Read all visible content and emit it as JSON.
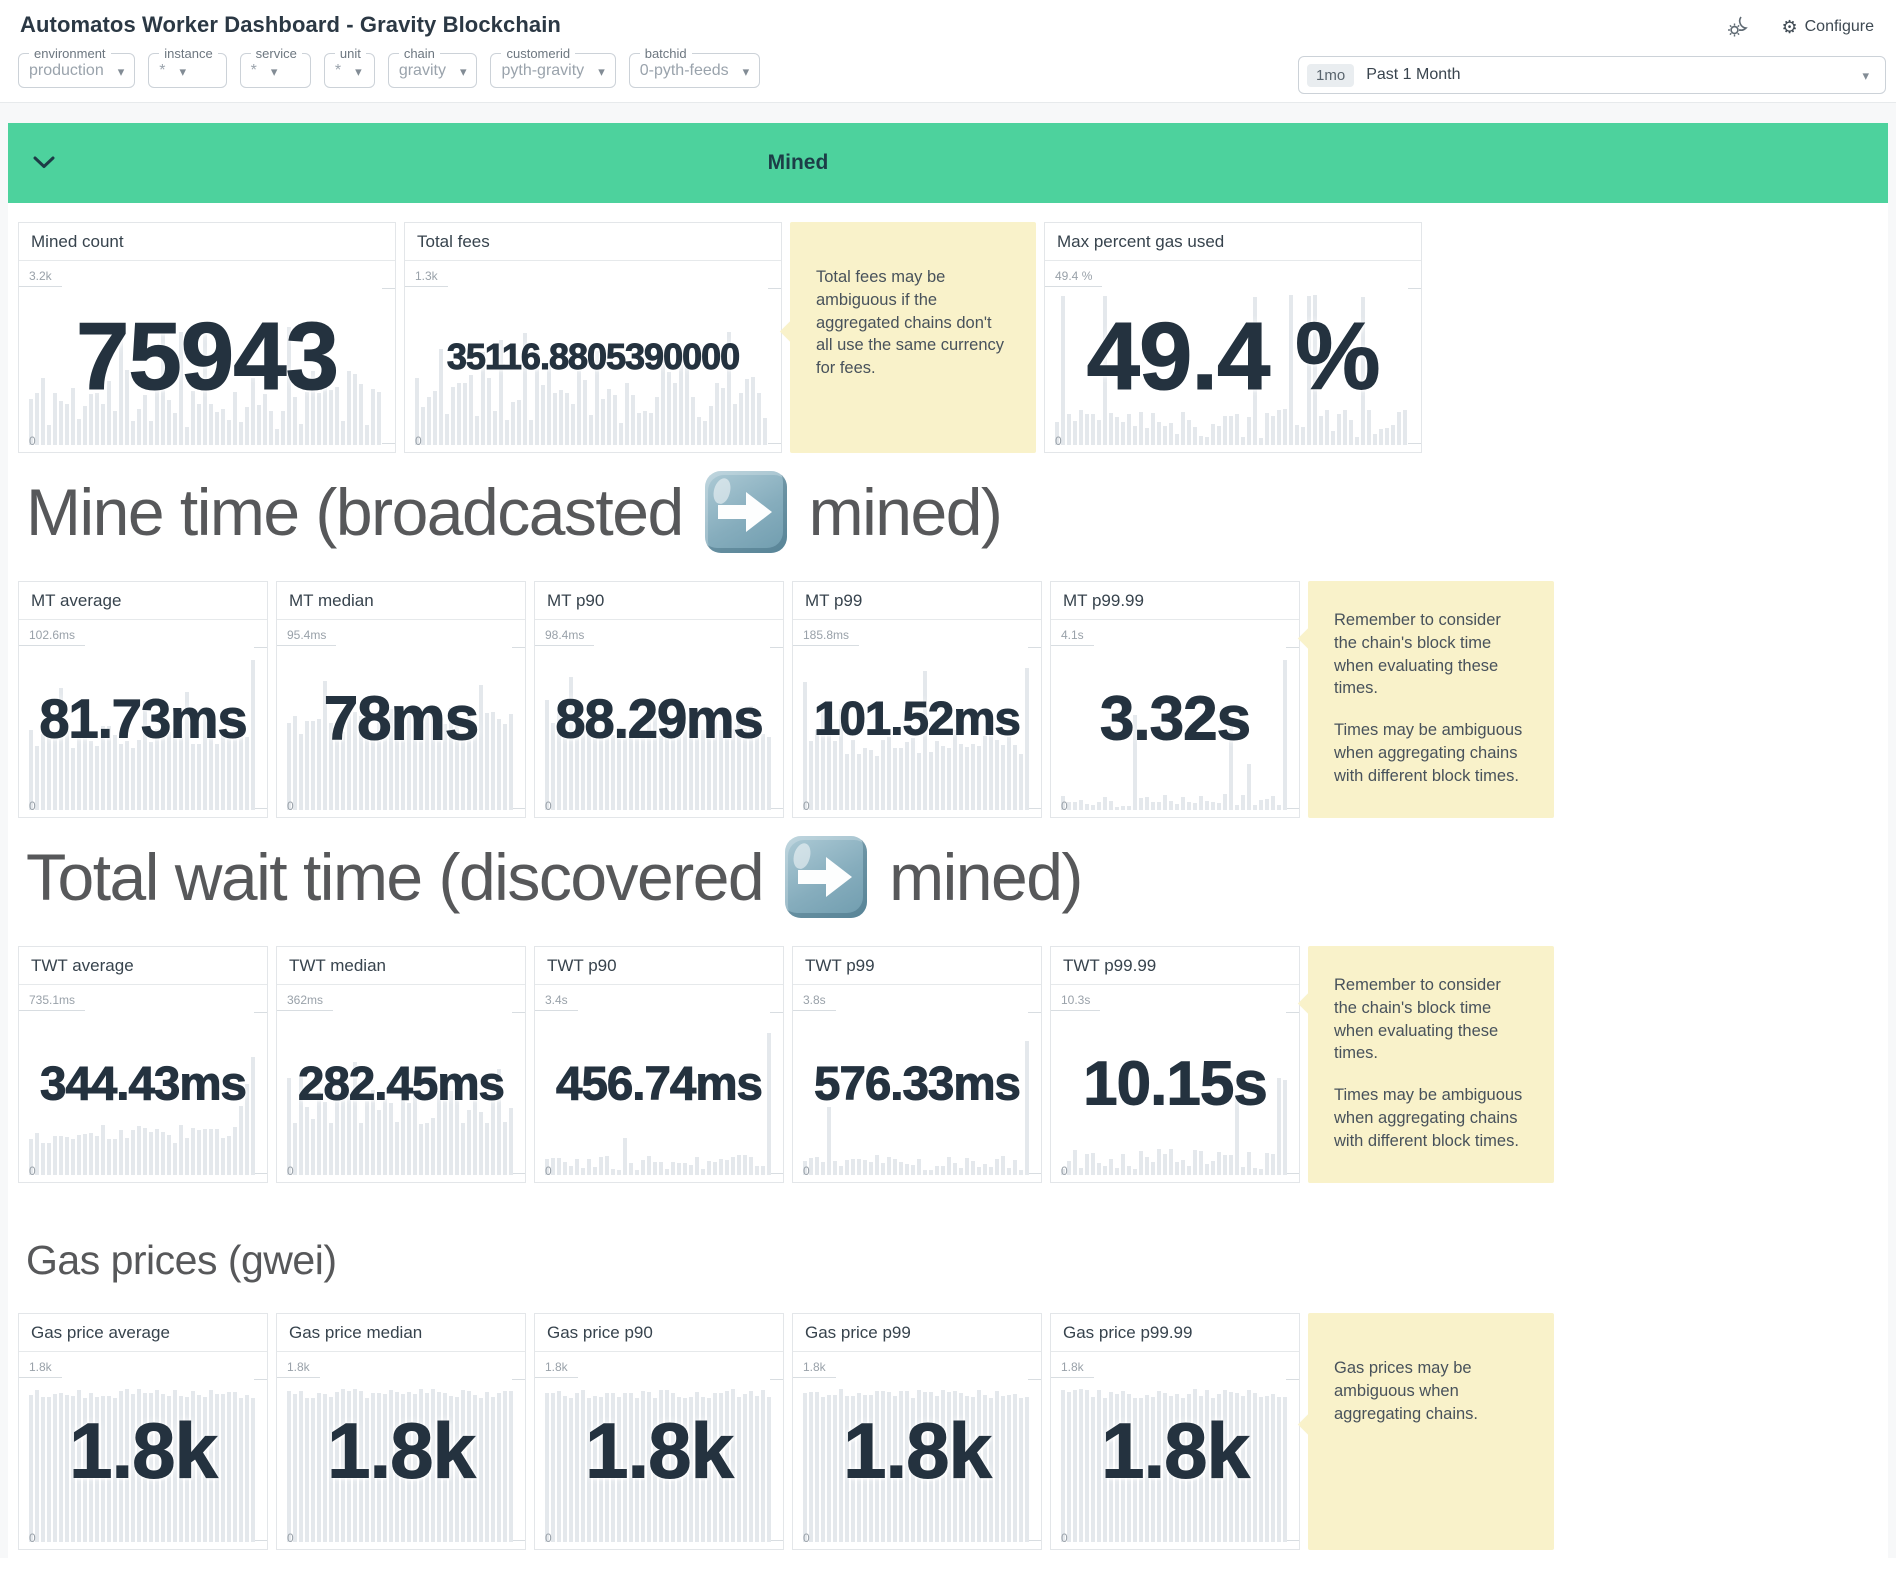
{
  "app": {
    "title": "Automatos Worker Dashboard - Gravity Blockchain",
    "configure_label": "Configure"
  },
  "icons": {
    "theme_toggle": "sun-moon",
    "configure": "gear",
    "time_caret": "caret-down",
    "section_chevron": "chevron-down",
    "heading_arrow": "arrow-right-emoji"
  },
  "filters": [
    {
      "label": "environment",
      "value": "production"
    },
    {
      "label": "instance",
      "value": "*"
    },
    {
      "label": "service",
      "value": "*"
    },
    {
      "label": "unit",
      "value": "*"
    },
    {
      "label": "chain",
      "value": "gravity"
    },
    {
      "label": "customerid",
      "value": "pyth-gravity"
    },
    {
      "label": "batchid",
      "value": "0-pyth-feeds"
    }
  ],
  "time_range": {
    "badge": "1mo",
    "label": "Past 1 Month"
  },
  "section": {
    "title": "Mined"
  },
  "headings": {
    "mine_time": {
      "before": "Mine time (broadcasted",
      "after": "mined)"
    },
    "total_wait": {
      "before": "Total wait time (discovered",
      "after": "mined)"
    },
    "gas": {
      "text": "Gas prices (gwei)"
    }
  },
  "rows": [
    {
      "items": [
        {
          "type": "card",
          "title": "Mined count",
          "value": "75943",
          "max_label": "3.2k",
          "min_label": "0",
          "spark": {
            "seed": 11,
            "base": 0.3,
            "jitter": 0.2,
            "spikeChance": 0.1,
            "spikeMin": 0.55,
            "spikeMax": 0.85
          }
        },
        {
          "type": "card",
          "title": "Total fees",
          "value": "35116.8805390000",
          "max_label": "1.3k",
          "min_label": "0",
          "spark": {
            "seed": 22,
            "base": 0.38,
            "jitter": 0.24,
            "spikeChance": 0.12,
            "spikeMin": 0.6,
            "spikeMax": 0.92
          }
        },
        {
          "type": "note",
          "paragraphs": [
            "Total fees may be ambiguous if the aggregated chains don't all use the same currency for fees."
          ]
        },
        {
          "type": "card",
          "title": "Max percent gas used",
          "value": "49.4 %",
          "max_label": "49.4 %",
          "min_label": "0",
          "spark": {
            "seed": 33,
            "base": 0.14,
            "jitter": 0.1,
            "spikeChance": 0.09,
            "spikeMin": 0.97,
            "spikeMax": 1.0
          }
        }
      ]
    },
    {
      "items": [
        {
          "type": "card",
          "title": "MT average",
          "value": "81.73ms",
          "max_label": "102.6ms",
          "min_label": "0",
          "spark": {
            "seed": 44,
            "base": 0.46,
            "jitter": 0.07,
            "spikeChance": 0.06,
            "spikeMin": 0.55,
            "spikeMax": 0.78,
            "last": 0.95
          }
        },
        {
          "type": "card",
          "title": "MT median",
          "value": "78ms",
          "max_label": "95.4ms",
          "min_label": "0",
          "spark": {
            "seed": 55,
            "base": 0.56,
            "jitter": 0.09,
            "spikeChance": 0.06,
            "spikeMin": 0.7,
            "spikeMax": 0.88
          }
        },
        {
          "type": "card",
          "title": "MT p90",
          "value": "88.29ms",
          "max_label": "98.4ms",
          "min_label": "0",
          "spark": {
            "seed": 66,
            "base": 0.52,
            "jitter": 0.07,
            "spikeChance": 0.05,
            "spikeMin": 0.65,
            "spikeMax": 0.85
          }
        },
        {
          "type": "card",
          "title": "MT p99",
          "value": "101.52ms",
          "max_label": "185.8ms",
          "min_label": "0",
          "spark": {
            "seed": 77,
            "base": 0.44,
            "jitter": 0.1,
            "spikeChance": 0.06,
            "spikeMin": 0.6,
            "spikeMax": 0.9,
            "last": 0.9
          }
        },
        {
          "type": "card",
          "title": "MT p99.99",
          "value": "3.32s",
          "max_label": "4.1s",
          "min_label": "0",
          "spark": {
            "seed": 88,
            "base": 0.06,
            "jitter": 0.04,
            "spikeChance": 0.06,
            "spikeMin": 0.2,
            "spikeMax": 0.6,
            "last": 0.95
          }
        },
        {
          "type": "note",
          "paragraphs": [
            "Remember to consider the chain's block time when evaluating these times.",
            "Times may be ambiguous when aggregating chains with different block times."
          ]
        }
      ]
    },
    {
      "items": [
        {
          "type": "card",
          "title": "TWT average",
          "value": "344.43ms",
          "max_label": "735.1ms",
          "min_label": "0",
          "spark": {
            "seed": 99,
            "base": 0.26,
            "jitter": 0.06,
            "spikeChance": 0.04,
            "spikeMin": 0.35,
            "spikeMax": 0.5,
            "rise": 0.92
          }
        },
        {
          "type": "card",
          "title": "TWT median",
          "value": "282.45ms",
          "max_label": "362ms",
          "min_label": "0",
          "spark": {
            "seed": 111,
            "base": 0.46,
            "jitter": 0.16,
            "spikeChance": 0.05,
            "spikeMin": 0.65,
            "spikeMax": 0.8
          }
        },
        {
          "type": "card",
          "title": "TWT p90",
          "value": "456.74ms",
          "max_label": "3.4s",
          "min_label": "0",
          "spark": {
            "seed": 122,
            "base": 0.08,
            "jitter": 0.05,
            "spikeChance": 0.02,
            "spikeMin": 0.2,
            "spikeMax": 0.35,
            "last": 0.9
          }
        },
        {
          "type": "card",
          "title": "TWT p99",
          "value": "576.33ms",
          "max_label": "3.8s",
          "min_label": "0",
          "spark": {
            "seed": 133,
            "base": 0.08,
            "jitter": 0.05,
            "spikeChance": 0.03,
            "spikeMin": 0.3,
            "spikeMax": 0.5,
            "last": 0.85
          }
        },
        {
          "type": "card",
          "title": "TWT p99.99",
          "value": "10.15s",
          "max_label": "10.3s",
          "min_label": "0",
          "spark": {
            "seed": 144,
            "base": 0.1,
            "jitter": 0.07,
            "spikeChance": 0.05,
            "spikeMin": 0.35,
            "spikeMax": 0.65,
            "last": 0.6
          }
        },
        {
          "type": "note",
          "paragraphs": [
            "Remember to consider the chain's block time when evaluating these times.",
            "Times may be ambiguous when aggregating chains with different block times."
          ]
        }
      ]
    },
    {
      "items": [
        {
          "type": "card",
          "title": "Gas price average",
          "value": "1.8k",
          "max_label": "1.8k",
          "min_label": "0",
          "spark": {
            "seed": 155,
            "base": 0.94,
            "jitter": 0.03,
            "spikeChance": 0,
            "spikeMin": 0,
            "spikeMax": 0
          }
        },
        {
          "type": "card",
          "title": "Gas price median",
          "value": "1.8k",
          "max_label": "1.8k",
          "min_label": "0",
          "spark": {
            "seed": 166,
            "base": 0.94,
            "jitter": 0.03,
            "spikeChance": 0,
            "spikeMin": 0,
            "spikeMax": 0
          }
        },
        {
          "type": "card",
          "title": "Gas price p90",
          "value": "1.8k",
          "max_label": "1.8k",
          "min_label": "0",
          "spark": {
            "seed": 177,
            "base": 0.94,
            "jitter": 0.03,
            "spikeChance": 0,
            "spikeMin": 0,
            "spikeMax": 0
          }
        },
        {
          "type": "card",
          "title": "Gas price p99",
          "value": "1.8k",
          "max_label": "1.8k",
          "min_label": "0",
          "spark": {
            "seed": 188,
            "base": 0.94,
            "jitter": 0.03,
            "spikeChance": 0,
            "spikeMin": 0,
            "spikeMax": 0
          }
        },
        {
          "type": "card",
          "title": "Gas price p99.99",
          "value": "1.8k",
          "max_label": "1.8k",
          "min_label": "0",
          "spark": {
            "seed": 199,
            "base": 0.94,
            "jitter": 0.03,
            "spikeChance": 0,
            "spikeMin": 0,
            "spikeMax": 0
          }
        },
        {
          "type": "note",
          "paragraphs": [
            "Gas prices may be ambiguous when aggregating chains."
          ]
        }
      ]
    }
  ]
}
